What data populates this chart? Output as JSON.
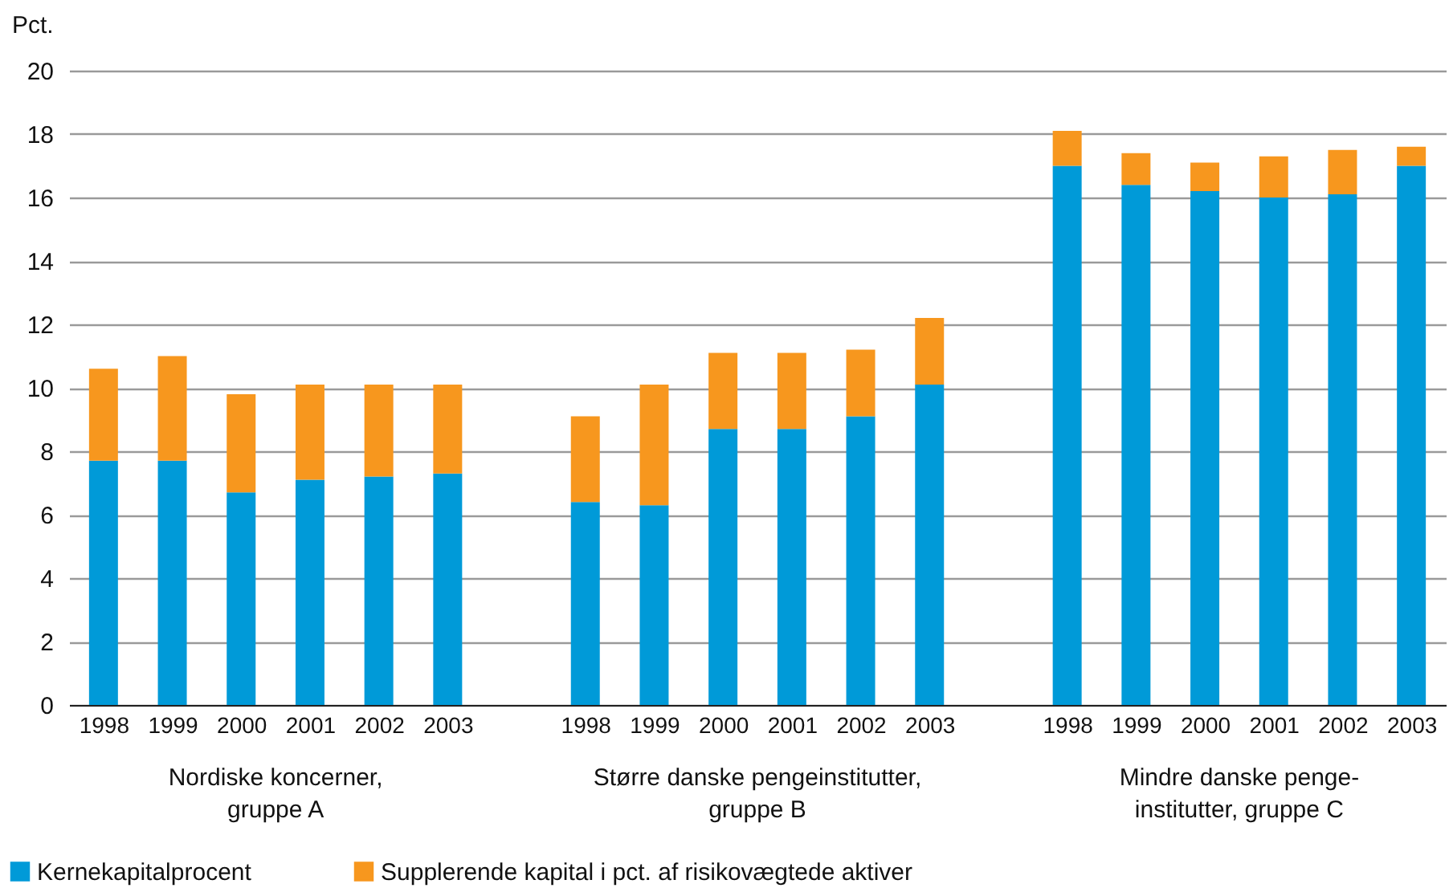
{
  "chart_data": {
    "type": "bar",
    "stacked": true,
    "ylabel": "Pct.",
    "categories": [
      "1998",
      "1999",
      "2000",
      "2001",
      "2002",
      "2003",
      null,
      "1998",
      "1999",
      "2000",
      "2001",
      "2002",
      "2003",
      null,
      "1998",
      "1999",
      "2000",
      "2001",
      "2002",
      "2003"
    ],
    "series": [
      {
        "name": "Kernekapitalprocent",
        "color": "#009ad8",
        "values": [
          7.7,
          7.7,
          6.7,
          7.1,
          7.2,
          7.3,
          null,
          6.4,
          6.3,
          8.7,
          8.7,
          9.1,
          10.1,
          null,
          17.0,
          16.4,
          16.2,
          16.0,
          16.1,
          17.0
        ]
      },
      {
        "name": "Supplerende kapital i pct. af risikovægtede aktiver",
        "color": "#f7971e",
        "values": [
          2.9,
          3.3,
          3.1,
          3.0,
          2.9,
          2.8,
          null,
          2.7,
          3.8,
          2.4,
          2.4,
          2.1,
          2.1,
          null,
          1.1,
          1.0,
          0.9,
          1.3,
          1.4,
          0.6
        ]
      }
    ],
    "ylim": [
      0,
      20
    ],
    "yticks": [
      0,
      2,
      4,
      6,
      8,
      10,
      12,
      14,
      16,
      18,
      20
    ],
    "grid": "y",
    "legend": "bottom left",
    "annotations": [
      "Nordiske koncerner,\ngruppe A",
      "Større danske pengeinstitutter,\ngruppe B",
      "Mindre danske penge-\ninstitutter, gruppe C"
    ]
  }
}
